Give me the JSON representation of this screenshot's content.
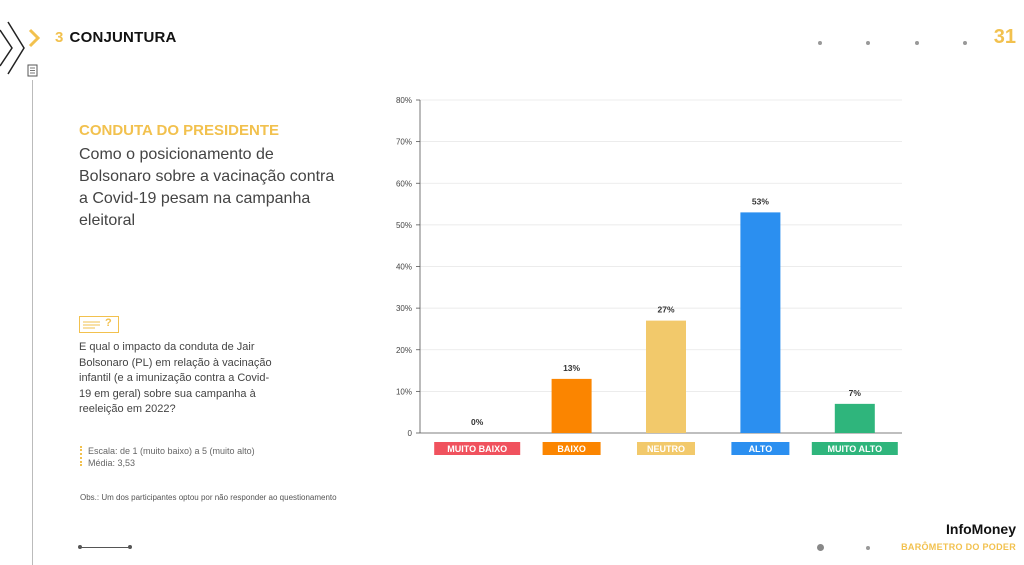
{
  "header": {
    "section_number": "3",
    "section_title": "CONJUNTURA",
    "page_number": "31"
  },
  "question": {
    "heading": "CONDUTA DO PRESIDENTE",
    "text": "Como o posicionamento de Bolsonaro sobre a vacinação contra a Covid-19 pesam na campanha eleitoral",
    "badge": "?",
    "detail": "E qual o impacto da conduta de Jair Bolsonaro (PL) em relação à vacinação infantil (e a imunização contra a Covid-19 em geral) sobre sua campanha à reeleição em 2022?",
    "scale_line1": "Escala: de 1 (muito baixo) a 5 (muito alto)",
    "scale_line2": "Média: 3,53"
  },
  "note": "Obs.: Um dos participantes optou por não responder ao questionamento",
  "brand": {
    "name": "InfoMoney",
    "subtitle": "BARÔMETRO DO PODER"
  },
  "colors": {
    "accent": "#f2c14e",
    "bars": [
      "#f0525e",
      "#fb8500",
      "#f2c96b",
      "#2b8ff0",
      "#2fb57c"
    ]
  },
  "chart_data": {
    "type": "bar",
    "categories": [
      "MUITO BAIXO",
      "BAIXO",
      "NEUTRO",
      "ALTO",
      "MUITO ALTO"
    ],
    "values": [
      0,
      13,
      27,
      53,
      7
    ],
    "value_labels": [
      "0%",
      "13%",
      "27%",
      "53%",
      "7%"
    ],
    "yticks": [
      "0",
      "10%",
      "20%",
      "30%",
      "40%",
      "50%",
      "60%",
      "70%",
      "80%"
    ],
    "ylim": [
      0,
      80
    ],
    "grid": true
  }
}
